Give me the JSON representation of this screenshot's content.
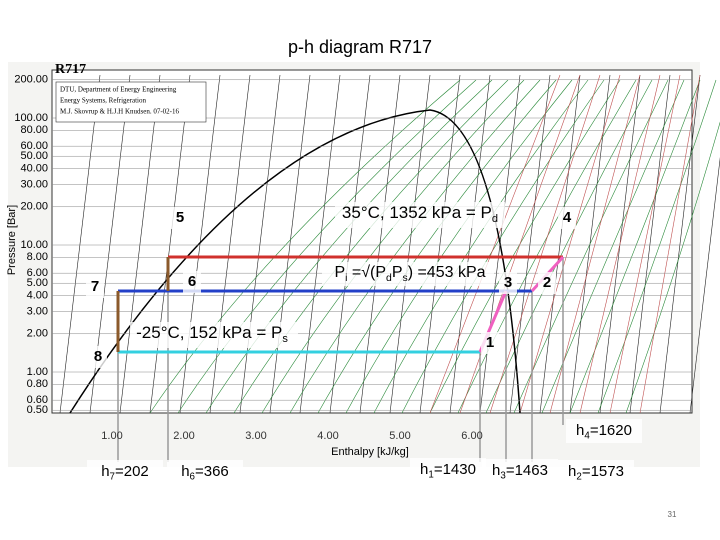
{
  "title": "p-h diagram R717",
  "diagram": {
    "name": "R717",
    "credit": [
      "DTU, Department of Energy Engineering",
      "Energy Systems, Refrigeration",
      "M.J. Skovrup & H.J.H Knudsen. 07-02-16"
    ],
    "y_axis_label": "Pressure [Bar]",
    "x_axis_label": "Enthalpy [kJ/kg]",
    "y_ticks": [
      "200.00",
      "100.00",
      "80.00",
      "60.00",
      "50.00",
      "40.00",
      "30.00",
      "20.00",
      "10.00",
      "8.00",
      "6.00",
      "5.00",
      "4.00",
      "3.00",
      "2.00",
      "1.00",
      "0.80",
      "0.60",
      "0.50"
    ],
    "s_ticks": [
      "1.00",
      "2.00",
      "3.00",
      "4.00",
      "5.00",
      "6.00"
    ]
  },
  "annotations": [
    {
      "parts": [
        {
          "t": "35°C, 1352 kPa = P"
        },
        {
          "sub": "d"
        }
      ]
    },
    {
      "parts": [
        {
          "t": "P"
        },
        {
          "sub": "i"
        },
        {
          "t": " =√(P"
        },
        {
          "sub": "d"
        },
        {
          "t": "P"
        },
        {
          "sub": "s"
        },
        {
          "t": ") =453 kPa"
        }
      ]
    },
    {
      "parts": [
        {
          "t": "-25°C, 152 kPa = P"
        },
        {
          "sub": "s"
        }
      ]
    }
  ],
  "points": [
    "1",
    "2",
    "3",
    "4",
    "5",
    "6",
    "7",
    "8"
  ],
  "enthalpies": [
    {
      "parts": [
        {
          "t": "h"
        },
        {
          "sub": "7"
        },
        {
          "t": "=202"
        }
      ]
    },
    {
      "parts": [
        {
          "t": "h"
        },
        {
          "sub": "6"
        },
        {
          "t": "=366"
        }
      ]
    },
    {
      "parts": [
        {
          "t": "h"
        },
        {
          "sub": "1"
        },
        {
          "t": "=1430"
        }
      ]
    },
    {
      "parts": [
        {
          "t": "h"
        },
        {
          "sub": "3"
        },
        {
          "t": "=1463"
        }
      ]
    },
    {
      "parts": [
        {
          "t": "h"
        },
        {
          "sub": "2"
        },
        {
          "t": "=1573"
        }
      ]
    },
    {
      "parts": [
        {
          "t": "h"
        },
        {
          "sub": "4"
        },
        {
          "t": "=1620"
        }
      ]
    }
  ],
  "page_number": "31"
}
